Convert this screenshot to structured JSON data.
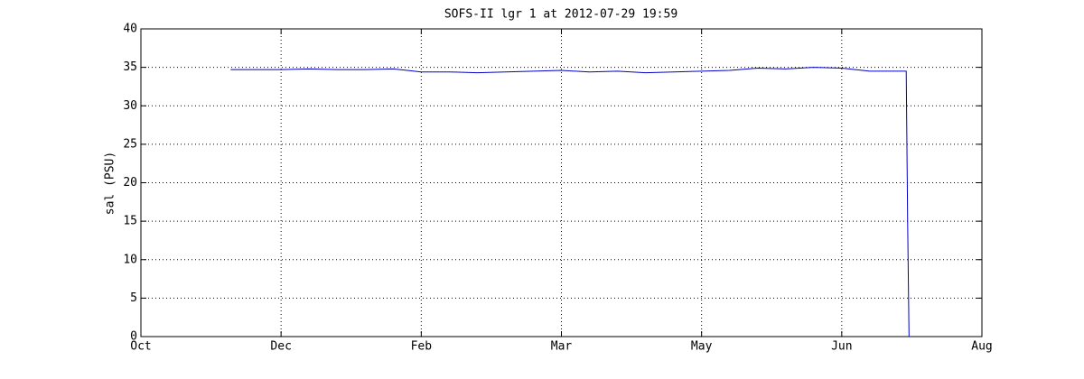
{
  "chart_data": {
    "type": "line",
    "title": "SOFS-II lgr 1 at 2012-07-29 19:59",
    "y_label": "sal (PSU)",
    "x": [
      0.64,
      0.8,
      1.0,
      1.2,
      1.4,
      1.6,
      1.8,
      1.9,
      2.0,
      2.2,
      2.4,
      2.6,
      2.8,
      3.0,
      3.2,
      3.4,
      3.6,
      3.8,
      4.0,
      4.2,
      4.4,
      4.6,
      4.8,
      5.0,
      5.2,
      5.4,
      5.46,
      5.47,
      5.48
    ],
    "series": [
      {
        "color": "#0000cc",
        "values": [
          34.7,
          34.7,
          34.7,
          34.8,
          34.7,
          34.7,
          34.8,
          34.6,
          34.4,
          34.4,
          34.3,
          34.4,
          34.5,
          34.6,
          34.4,
          34.5,
          34.3,
          34.4,
          34.5,
          34.6,
          34.9,
          34.8,
          35.0,
          34.9,
          34.5,
          34.5,
          34.5,
          15,
          0
        ]
      }
    ],
    "xlim": [
      0,
      6
    ],
    "xticks": [
      {
        "value": 0,
        "label": "Oct"
      },
      {
        "value": 1,
        "label": "Dec"
      },
      {
        "value": 2,
        "label": "Feb"
      },
      {
        "value": 3,
        "label": "Mar"
      },
      {
        "value": 4,
        "label": "May"
      },
      {
        "value": 5,
        "label": "Jun"
      },
      {
        "value": 6,
        "label": "Aug"
      }
    ],
    "ylim": [
      0,
      40
    ],
    "yticks": [
      0,
      5,
      10,
      15,
      20,
      25,
      30,
      35,
      40
    ],
    "grid": true
  }
}
